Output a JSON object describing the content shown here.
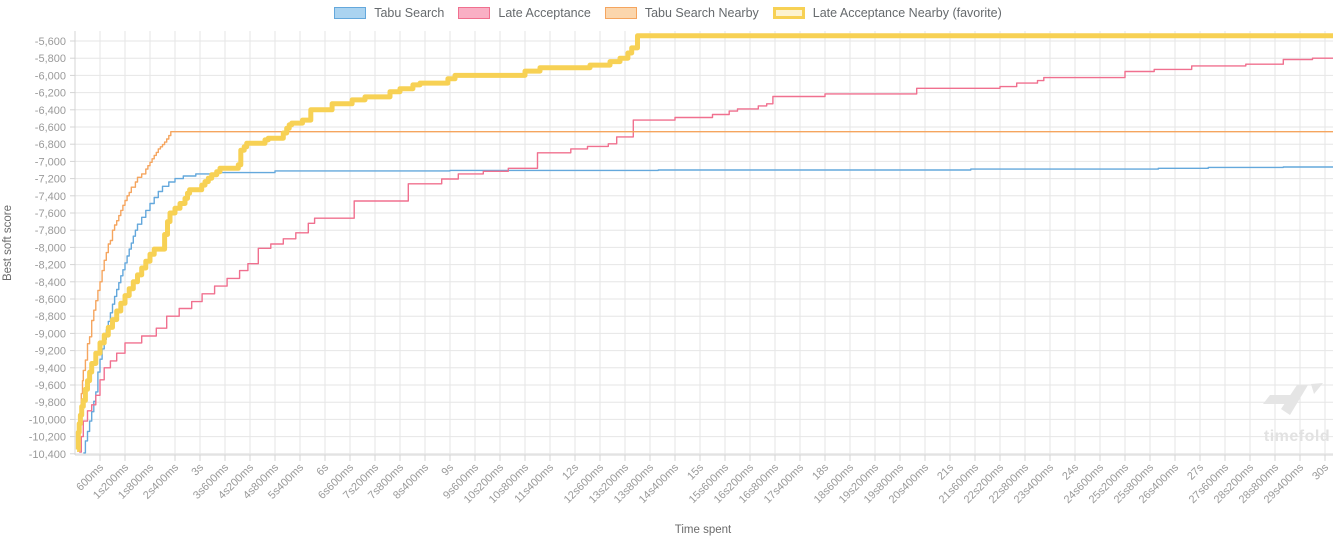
{
  "watermark": {
    "text": "timefold"
  },
  "chart_data": {
    "type": "line",
    "step_interpolation": true,
    "title": "",
    "xlabel": "Time spent",
    "ylabel": "Best soft score",
    "xlim_seconds": [
      0,
      30
    ],
    "ylim": [
      -10400,
      -5600
    ],
    "grid": true,
    "legend_position": "top-center",
    "x_tick_interval_seconds": 0.6,
    "x_tick_labels": [
      "600ms",
      "1s200ms",
      "1s800ms",
      "2s400ms",
      "3s",
      "3s600ms",
      "4s200ms",
      "4s800ms",
      "5s400ms",
      "6s",
      "6s600ms",
      "7s200ms",
      "7s800ms",
      "8s400ms",
      "9s",
      "9s600ms",
      "10s200ms",
      "10s800ms",
      "11s400ms",
      "12s",
      "12s600ms",
      "13s200ms",
      "13s800ms",
      "14s400ms",
      "15s",
      "15s600ms",
      "16s200ms",
      "16s800ms",
      "17s400ms",
      "18s",
      "18s600ms",
      "19s200ms",
      "19s800ms",
      "20s400ms",
      "21s",
      "21s600ms",
      "22s200ms",
      "22s800ms",
      "23s400ms",
      "24s",
      "24s600ms",
      "25s200ms",
      "25s800ms",
      "26s400ms",
      "27s",
      "27s600ms",
      "28s200ms",
      "28s800ms",
      "29s400ms",
      "30s"
    ],
    "y_tick_labels": [
      "-5,600",
      "-5,800",
      "-6,000",
      "-6,200",
      "-6,400",
      "-6,600",
      "-6,800",
      "-7,000",
      "-7,200",
      "-7,400",
      "-7,600",
      "-7,800",
      "-8,000",
      "-8,200",
      "-8,400",
      "-8,600",
      "-8,800",
      "-9,000",
      "-9,200",
      "-9,400",
      "-9,600",
      "-9,800",
      "-10,000",
      "-10,200",
      "-10,400"
    ],
    "y_tick_step": 200,
    "series": [
      {
        "name": "Tabu Search",
        "line_color": "#64a8dc",
        "legend_fill": "#aad3f0",
        "line_width": 1.4,
        "points": [
          [
            0.2,
            -10390
          ],
          [
            0.25,
            -10250
          ],
          [
            0.3,
            -10140
          ],
          [
            0.35,
            -10020
          ],
          [
            0.4,
            -9910
          ],
          [
            0.45,
            -9790
          ],
          [
            0.5,
            -9680
          ],
          [
            0.55,
            -9450
          ],
          [
            0.6,
            -9300
          ],
          [
            0.65,
            -9180
          ],
          [
            0.7,
            -9070
          ],
          [
            0.75,
            -8960
          ],
          [
            0.8,
            -8860
          ],
          [
            0.85,
            -8760
          ],
          [
            0.9,
            -8660
          ],
          [
            0.95,
            -8570
          ],
          [
            1.0,
            -8490
          ],
          [
            1.05,
            -8410
          ],
          [
            1.1,
            -8330
          ],
          [
            1.15,
            -8260
          ],
          [
            1.2,
            -8180
          ],
          [
            1.25,
            -8100
          ],
          [
            1.3,
            -8020
          ],
          [
            1.35,
            -7950
          ],
          [
            1.4,
            -7870
          ],
          [
            1.45,
            -7800
          ],
          [
            1.5,
            -7730
          ],
          [
            1.6,
            -7650
          ],
          [
            1.7,
            -7570
          ],
          [
            1.8,
            -7490
          ],
          [
            1.9,
            -7420
          ],
          [
            2.0,
            -7350
          ],
          [
            2.1,
            -7290
          ],
          [
            2.25,
            -7240
          ],
          [
            2.4,
            -7200
          ],
          [
            2.6,
            -7170
          ],
          [
            2.9,
            -7145
          ],
          [
            3.4,
            -7130
          ],
          [
            4.8,
            -7110
          ],
          [
            9.0,
            -7105
          ],
          [
            14.0,
            -7100
          ],
          [
            21.5,
            -7090
          ],
          [
            26.0,
            -7080
          ],
          [
            27.2,
            -7070
          ],
          [
            29.0,
            -7065
          ]
        ]
      },
      {
        "name": "Late Acceptance",
        "line_color": "#f0708f",
        "legend_fill": "#f9afc4",
        "line_width": 1.4,
        "points": [
          [
            0.1,
            -10380
          ],
          [
            0.15,
            -10200
          ],
          [
            0.2,
            -10020
          ],
          [
            0.3,
            -9900
          ],
          [
            0.4,
            -9830
          ],
          [
            0.5,
            -9720
          ],
          [
            0.6,
            -9540
          ],
          [
            0.7,
            -9400
          ],
          [
            0.85,
            -9320
          ],
          [
            1.0,
            -9230
          ],
          [
            1.2,
            -9110
          ],
          [
            1.6,
            -9030
          ],
          [
            1.95,
            -8940
          ],
          [
            2.2,
            -8800
          ],
          [
            2.5,
            -8710
          ],
          [
            2.8,
            -8630
          ],
          [
            3.05,
            -8540
          ],
          [
            3.35,
            -8450
          ],
          [
            3.65,
            -8360
          ],
          [
            3.95,
            -8270
          ],
          [
            4.15,
            -8190
          ],
          [
            4.4,
            -8010
          ],
          [
            4.7,
            -7960
          ],
          [
            5.0,
            -7900
          ],
          [
            5.3,
            -7830
          ],
          [
            5.6,
            -7720
          ],
          [
            5.75,
            -7660
          ],
          [
            6.7,
            -7460
          ],
          [
            8.0,
            -7260
          ],
          [
            8.8,
            -7205
          ],
          [
            9.2,
            -7145
          ],
          [
            9.8,
            -7115
          ],
          [
            10.4,
            -7080
          ],
          [
            11.1,
            -6900
          ],
          [
            11.9,
            -6855
          ],
          [
            12.3,
            -6825
          ],
          [
            12.8,
            -6795
          ],
          [
            13.0,
            -6715
          ],
          [
            13.4,
            -6520
          ],
          [
            14.4,
            -6490
          ],
          [
            15.3,
            -6455
          ],
          [
            15.7,
            -6415
          ],
          [
            15.9,
            -6390
          ],
          [
            16.4,
            -6355
          ],
          [
            16.6,
            -6330
          ],
          [
            16.75,
            -6245
          ],
          [
            18.0,
            -6215
          ],
          [
            20.2,
            -6150
          ],
          [
            22.2,
            -6130
          ],
          [
            22.6,
            -6090
          ],
          [
            23.1,
            -6060
          ],
          [
            23.25,
            -6025
          ],
          [
            25.2,
            -5955
          ],
          [
            25.9,
            -5930
          ],
          [
            26.8,
            -5890
          ],
          [
            28.1,
            -5870
          ],
          [
            29.0,
            -5815
          ],
          [
            29.7,
            -5800
          ]
        ]
      },
      {
        "name": "Tabu Search Nearby",
        "line_color": "#f5a55f",
        "legend_fill": "#fbd6ad",
        "line_width": 1.4,
        "points": [
          [
            0.05,
            -10220
          ],
          [
            0.08,
            -10050
          ],
          [
            0.1,
            -9970
          ],
          [
            0.13,
            -9850
          ],
          [
            0.15,
            -9700
          ],
          [
            0.18,
            -9550
          ],
          [
            0.2,
            -9430
          ],
          [
            0.25,
            -9310
          ],
          [
            0.3,
            -9120
          ],
          [
            0.35,
            -9040
          ],
          [
            0.4,
            -8850
          ],
          [
            0.45,
            -8730
          ],
          [
            0.5,
            -8620
          ],
          [
            0.55,
            -8500
          ],
          [
            0.6,
            -8400
          ],
          [
            0.65,
            -8270
          ],
          [
            0.7,
            -8150
          ],
          [
            0.75,
            -8060
          ],
          [
            0.8,
            -7960
          ],
          [
            0.85,
            -7920
          ],
          [
            0.9,
            -7800
          ],
          [
            0.95,
            -7740
          ],
          [
            1.0,
            -7690
          ],
          [
            1.05,
            -7630
          ],
          [
            1.1,
            -7570
          ],
          [
            1.15,
            -7510
          ],
          [
            1.2,
            -7455
          ],
          [
            1.25,
            -7400
          ],
          [
            1.3,
            -7360
          ],
          [
            1.35,
            -7300
          ],
          [
            1.45,
            -7240
          ],
          [
            1.5,
            -7185
          ],
          [
            1.6,
            -7145
          ],
          [
            1.7,
            -7090
          ],
          [
            1.75,
            -7050
          ],
          [
            1.8,
            -7010
          ],
          [
            1.85,
            -6970
          ],
          [
            1.9,
            -6930
          ],
          [
            1.95,
            -6895
          ],
          [
            2.0,
            -6855
          ],
          [
            2.05,
            -6830
          ],
          [
            2.1,
            -6805
          ],
          [
            2.15,
            -6775
          ],
          [
            2.2,
            -6740
          ],
          [
            2.25,
            -6700
          ],
          [
            2.3,
            -6655
          ]
        ]
      },
      {
        "name": "Late Acceptance Nearby (favorite)",
        "line_color": "#f7d154",
        "legend_fill": "#fdf3d0",
        "line_width": 5,
        "points": [
          [
            0.05,
            -10350
          ],
          [
            0.08,
            -10150
          ],
          [
            0.1,
            -10050
          ],
          [
            0.13,
            -9950
          ],
          [
            0.16,
            -9850
          ],
          [
            0.2,
            -9780
          ],
          [
            0.25,
            -9650
          ],
          [
            0.3,
            -9550
          ],
          [
            0.35,
            -9450
          ],
          [
            0.4,
            -9350
          ],
          [
            0.5,
            -9230
          ],
          [
            0.6,
            -9110
          ],
          [
            0.7,
            -9020
          ],
          [
            0.8,
            -8930
          ],
          [
            0.9,
            -8840
          ],
          [
            1.0,
            -8740
          ],
          [
            1.1,
            -8650
          ],
          [
            1.2,
            -8560
          ],
          [
            1.3,
            -8480
          ],
          [
            1.4,
            -8400
          ],
          [
            1.5,
            -8320
          ],
          [
            1.6,
            -8240
          ],
          [
            1.7,
            -8160
          ],
          [
            1.8,
            -8080
          ],
          [
            1.9,
            -8020
          ],
          [
            2.15,
            -7850
          ],
          [
            2.22,
            -7700
          ],
          [
            2.28,
            -7600
          ],
          [
            2.4,
            -7545
          ],
          [
            2.52,
            -7490
          ],
          [
            2.64,
            -7430
          ],
          [
            2.7,
            -7370
          ],
          [
            2.75,
            -7330
          ],
          [
            3.04,
            -7275
          ],
          [
            3.12,
            -7235
          ],
          [
            3.2,
            -7195
          ],
          [
            3.28,
            -7155
          ],
          [
            3.4,
            -7120
          ],
          [
            3.48,
            -7080
          ],
          [
            3.92,
            -7040
          ],
          [
            3.98,
            -6870
          ],
          [
            4.06,
            -6830
          ],
          [
            4.12,
            -6790
          ],
          [
            4.56,
            -6750
          ],
          [
            4.64,
            -6730
          ],
          [
            5.0,
            -6670
          ],
          [
            5.08,
            -6615
          ],
          [
            5.14,
            -6575
          ],
          [
            5.2,
            -6555
          ],
          [
            5.46,
            -6520
          ],
          [
            5.66,
            -6400
          ],
          [
            6.17,
            -6330
          ],
          [
            6.65,
            -6285
          ],
          [
            6.96,
            -6250
          ],
          [
            7.56,
            -6190
          ],
          [
            7.8,
            -6155
          ],
          [
            8.11,
            -6110
          ],
          [
            8.28,
            -6090
          ],
          [
            8.95,
            -6040
          ],
          [
            9.12,
            -6000
          ],
          [
            10.8,
            -5950
          ],
          [
            11.16,
            -5910
          ],
          [
            12.36,
            -5880
          ],
          [
            12.84,
            -5840
          ],
          [
            13.08,
            -5800
          ],
          [
            13.27,
            -5740
          ],
          [
            13.36,
            -5680
          ],
          [
            13.5,
            -5540
          ]
        ]
      }
    ]
  }
}
